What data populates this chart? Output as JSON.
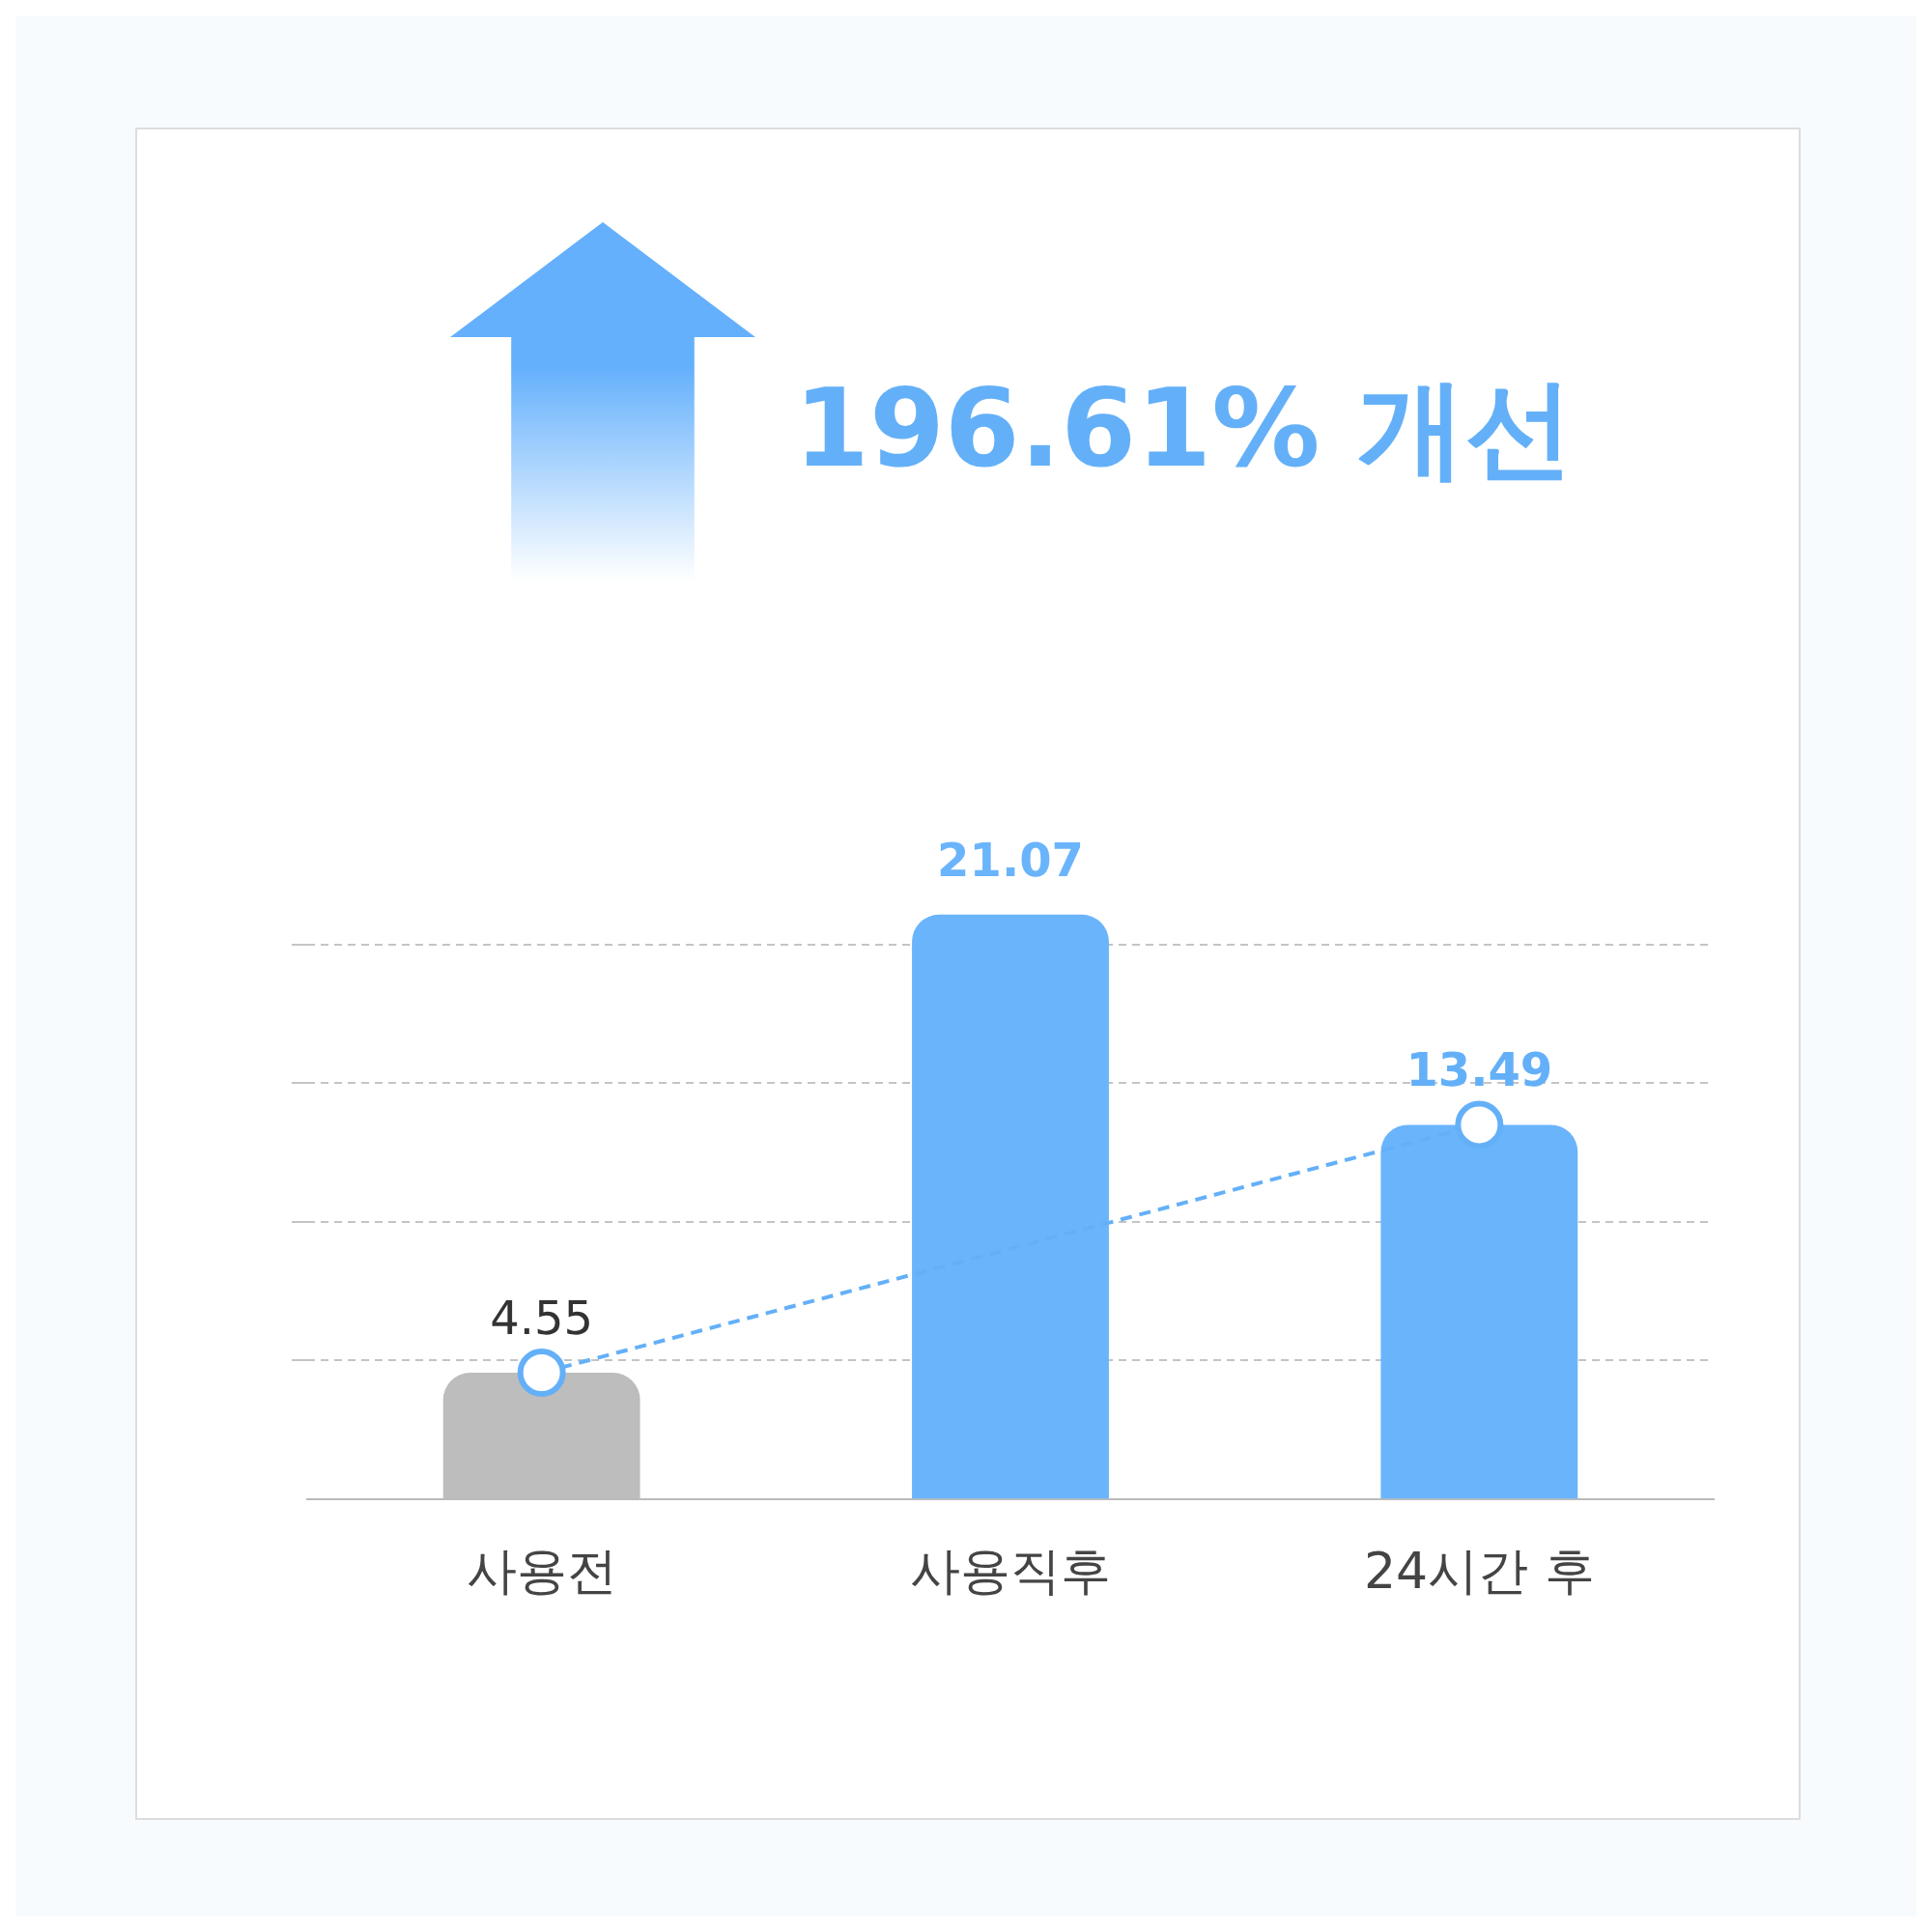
{
  "chart_data": {
    "type": "bar",
    "title": "196.61% 개선",
    "categories": [
      "사용전",
      "사용직후",
      "24시간 후"
    ],
    "series": [
      {
        "values": [
          4.55,
          21.07,
          13.49
        ],
        "colors": [
          "#bdbdbd",
          "#6ab4fc",
          "#6ab4fc"
        ],
        "value_labels": [
          null,
          "21.07",
          null
        ]
      },
      {
        "type": "line",
        "values": [
          4.55,
          null,
          13.49
        ],
        "color": "#64b0f8",
        "marker": "circle",
        "line_style": "dashed",
        "value_labels": [
          "4.55",
          null,
          "13.49"
        ]
      }
    ],
    "yticks": [
      {
        "value": 5,
        "label": null
      },
      {
        "value": 10,
        "label": null
      },
      {
        "value": 15,
        "label": null
      },
      {
        "value": 20,
        "label": null
      }
    ],
    "grid": "y",
    "tick_labels": "x",
    "legend": false
  }
}
